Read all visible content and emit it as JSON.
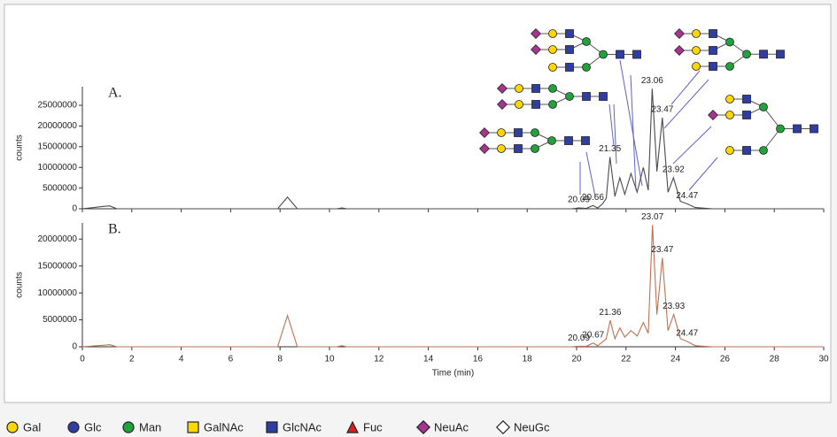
{
  "chart_data": [
    {
      "type": "line",
      "label": "A.",
      "y_label": "counts",
      "color": "#4a4a4a",
      "xlim": [
        0,
        30
      ],
      "ylim": [
        0,
        29500000
      ],
      "yticks": [
        0,
        5000000,
        10000000,
        15000000,
        20000000,
        25000000
      ],
      "x": [
        0,
        0.9,
        1.1,
        1.4,
        7.9,
        8.3,
        8.7,
        10.3,
        10.5,
        10.7,
        19.8,
        20.09,
        20.4,
        20.66,
        20.85,
        21.05,
        21.2,
        21.35,
        21.55,
        21.75,
        21.95,
        22.2,
        22.45,
        22.7,
        22.9,
        23.06,
        23.25,
        23.47,
        23.7,
        23.92,
        24.2,
        24.47,
        24.8,
        25.5,
        30
      ],
      "values": [
        0,
        600000,
        700000,
        0,
        0,
        2800000,
        0,
        0,
        200000,
        0,
        0,
        200000,
        100000,
        800000,
        200000,
        1200000,
        2500000,
        12500000,
        3000000,
        7500000,
        3500000,
        8500000,
        4000000,
        10000000,
        4500000,
        29000000,
        9000000,
        22000000,
        4000000,
        7500000,
        1800000,
        1200000,
        300000,
        0,
        0
      ],
      "peak_labels": [
        20.09,
        20.66,
        21.35,
        23.06,
        23.47,
        23.92,
        24.47
      ]
    },
    {
      "type": "line",
      "label": "B.",
      "y_label": "counts",
      "x_label": "Time (min)",
      "color": "#c0704f",
      "xlim": [
        0,
        30
      ],
      "ylim": [
        0,
        23000000
      ],
      "xticks": [
        0,
        2,
        4,
        6,
        8,
        10,
        12,
        14,
        16,
        18,
        20,
        22,
        24,
        26,
        28,
        30
      ],
      "yticks": [
        0,
        5000000,
        10000000,
        15000000,
        20000000
      ],
      "x": [
        0,
        0.9,
        1.1,
        1.4,
        7.9,
        8.3,
        8.7,
        10.3,
        10.5,
        10.7,
        19.8,
        20.09,
        20.4,
        20.67,
        20.85,
        21.05,
        21.2,
        21.36,
        21.55,
        21.75,
        21.95,
        22.2,
        22.45,
        22.7,
        22.9,
        23.07,
        23.25,
        23.47,
        23.7,
        23.93,
        24.2,
        24.47,
        24.8,
        25.5,
        30
      ],
      "values": [
        0,
        300000,
        400000,
        0,
        0,
        5800000,
        0,
        0,
        200000,
        0,
        0,
        100000,
        100000,
        700000,
        200000,
        900000,
        1500000,
        4900000,
        1500000,
        3500000,
        1800000,
        3000000,
        2000000,
        4500000,
        2500000,
        22600000,
        6000000,
        16500000,
        3000000,
        6000000,
        1500000,
        1000000,
        200000,
        0,
        0
      ],
      "peak_labels": [
        20.09,
        20.67,
        21.36,
        23.07,
        23.47,
        23.93,
        24.47
      ]
    }
  ],
  "symbol_legend": [
    {
      "name": "Gal",
      "shape": "circle",
      "color": "#ffd700"
    },
    {
      "name": "Glc",
      "shape": "circle",
      "color": "#2f3ea0"
    },
    {
      "name": "Man",
      "shape": "circle",
      "color": "#1fa33a"
    },
    {
      "name": "GalNAc",
      "shape": "square",
      "color": "#ffd700"
    },
    {
      "name": "GlcNAc",
      "shape": "square",
      "color": "#2f3ea0"
    },
    {
      "name": "Fuc",
      "shape": "triangle",
      "color": "#e01b1b"
    },
    {
      "name": "NeuAc",
      "shape": "diamond",
      "color": "#a5358f"
    },
    {
      "name": "NeuGc",
      "shape": "diamond",
      "color": "#ffffff"
    }
  ]
}
